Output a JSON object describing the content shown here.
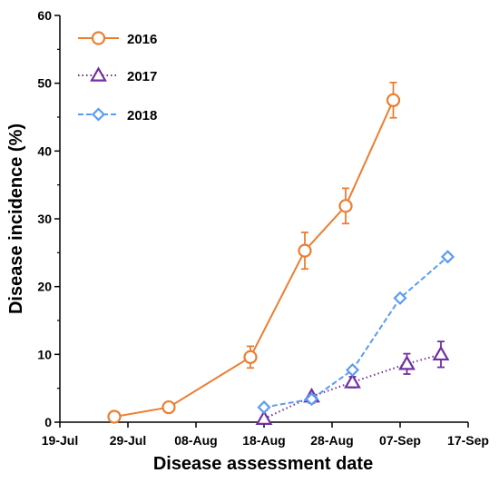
{
  "chart_data": {
    "type": "line",
    "xlabel": "Disease assessment date",
    "ylabel": "Disease incidence (%)",
    "x_axis": {
      "ticks": [
        "19-Jul",
        "29-Jul",
        "08-Aug",
        "18-Aug",
        "28-Aug",
        "07-Sep",
        "17-Sep"
      ]
    },
    "y_axis": {
      "ylim": [
        0,
        60
      ],
      "ticks": [
        "0",
        "10",
        "20",
        "30",
        "40",
        "50",
        "60"
      ]
    },
    "grid": false,
    "legend_position": "top-left",
    "series": [
      {
        "name": "2016",
        "color": "#ED7D31",
        "marker": "circle",
        "line_style": "solid",
        "points": [
          {
            "x": "2016-07-27",
            "y": 0.8
          },
          {
            "x": "2016-08-04",
            "y": 2.2
          },
          {
            "x": "2016-08-16",
            "y": 9.6,
            "err": 1.6
          },
          {
            "x": "2016-08-24",
            "y": 25.3,
            "err": 2.7
          },
          {
            "x": "2016-08-30",
            "y": 31.9,
            "err": 2.6
          },
          {
            "x": "2016-09-06",
            "y": 47.5,
            "err": 2.6
          }
        ]
      },
      {
        "name": "2017",
        "color": "#7030A0",
        "marker": "triangle",
        "line_style": "dotted",
        "points": [
          {
            "x": "2017-08-18",
            "y": 0.5
          },
          {
            "x": "2017-08-25",
            "y": 3.8
          },
          {
            "x": "2017-08-31",
            "y": 5.9,
            "err": 0.8
          },
          {
            "x": "2017-09-08",
            "y": 8.6,
            "err": 1.5
          },
          {
            "x": "2017-09-13",
            "y": 10.0,
            "err": 1.9
          }
        ]
      },
      {
        "name": "2018",
        "color": "#5B9BF5",
        "marker": "diamond",
        "line_style": "dashed",
        "points": [
          {
            "x": "2018-08-18",
            "y": 2.2
          },
          {
            "x": "2018-08-25",
            "y": 3.4,
            "err": 0.6
          },
          {
            "x": "2018-08-31",
            "y": 7.7
          },
          {
            "x": "2018-09-07",
            "y": 18.3
          },
          {
            "x": "2018-09-14",
            "y": 24.4,
            "err": 0.4
          }
        ]
      }
    ]
  }
}
